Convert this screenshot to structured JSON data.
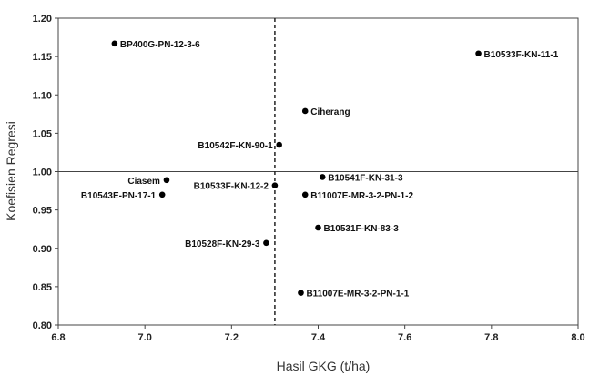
{
  "chart_data": {
    "type": "scatter",
    "title": "",
    "xlabel": "Hasil GKG (t/ha)",
    "ylabel": "Koefisien Regresi",
    "xlim": [
      6.8,
      8.0
    ],
    "ylim": [
      0.8,
      1.2
    ],
    "x_ticks": [
      "6.8",
      "7.0",
      "7.2",
      "7.4",
      "7.6",
      "7.8",
      "8.0"
    ],
    "y_ticks": [
      "0.80",
      "0.85",
      "0.90",
      "0.95",
      "1.00",
      "1.05",
      "1.10",
      "1.15",
      "1.20"
    ],
    "reference_lines": {
      "x_mean": 7.3,
      "y_ref": 1.0
    },
    "grid": false,
    "legend": "none",
    "marker_color": "#000000",
    "points": [
      {
        "label": "BP400G-PN-12-3-6",
        "x": 6.93,
        "y": 1.167
      },
      {
        "label": "B10533F-KN-11-1",
        "x": 7.77,
        "y": 1.154
      },
      {
        "label": "Ciherang",
        "x": 7.37,
        "y": 1.079
      },
      {
        "label": "B10542F-KN-90-1",
        "x": 7.31,
        "y": 1.035
      },
      {
        "label": "B10541F-KN-31-3",
        "x": 7.41,
        "y": 0.993
      },
      {
        "label": "Ciasem",
        "x": 7.05,
        "y": 0.989
      },
      {
        "label": "B10533F-KN-12-2",
        "x": 7.3,
        "y": 0.982
      },
      {
        "label": "B10543E-PN-17-1",
        "x": 7.04,
        "y": 0.97
      },
      {
        "label": "B11007E-MR-3-2-PN-1-2",
        "x": 7.37,
        "y": 0.97
      },
      {
        "label": "B10531F-KN-83-3",
        "x": 7.4,
        "y": 0.927
      },
      {
        "label": "B10528F-KN-29-3",
        "x": 7.28,
        "y": 0.907
      },
      {
        "label": "B11007E-MR-3-2-PN-1-1",
        "x": 7.36,
        "y": 0.842
      }
    ]
  }
}
